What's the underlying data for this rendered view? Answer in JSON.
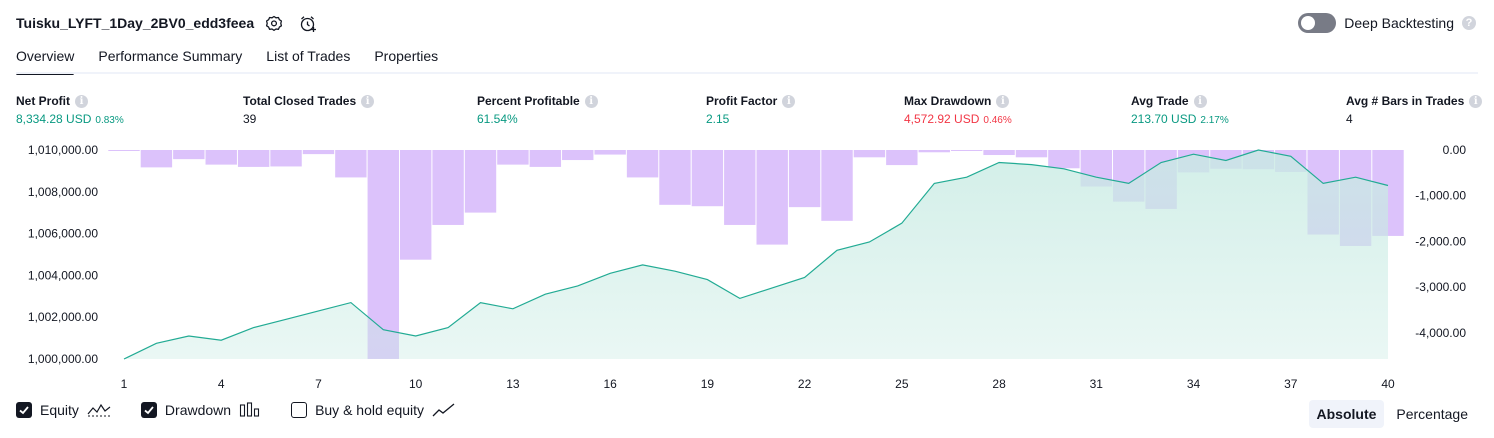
{
  "header": {
    "title": "Tuisku_LYFT_1Day_2BV0_edd3feea"
  },
  "deep_backtesting": {
    "label": "Deep Backtesting",
    "help": "?"
  },
  "tabs": [
    {
      "label": "Overview",
      "active": true
    },
    {
      "label": "Performance Summary"
    },
    {
      "label": "List of Trades"
    },
    {
      "label": "Properties"
    }
  ],
  "metrics": {
    "net_profit": {
      "label": "Net Profit",
      "value": "8,334.28 USD",
      "sub": "0.83%"
    },
    "total_closed_trades": {
      "label": "Total Closed Trades",
      "value": "39"
    },
    "percent_profitable": {
      "label": "Percent Profitable",
      "value": "61.54%"
    },
    "profit_factor": {
      "label": "Profit Factor",
      "value": "2.15"
    },
    "max_drawdown": {
      "label": "Max Drawdown",
      "value": "4,572.92 USD",
      "sub": "0.46%"
    },
    "avg_trade": {
      "label": "Avg Trade",
      "value": "213.70 USD",
      "sub": "2.17%"
    },
    "avg_bars": {
      "label": "Avg # Bars in Trades",
      "value": "4"
    },
    "info_glyph": "i"
  },
  "legend": {
    "equity": {
      "label": "Equity",
      "checked": true
    },
    "drawdown": {
      "label": "Drawdown",
      "checked": true
    },
    "buy_hold": {
      "label": "Buy & hold equity",
      "checked": false
    }
  },
  "mode": {
    "absolute": "Absolute",
    "percentage": "Percentage",
    "selected": "Absolute"
  },
  "colors": {
    "equity_line": "#22ab94",
    "equity_fill": "#c8ebe3",
    "drawdown_bar": "#dcc2fb",
    "positive": "#089981",
    "negative": "#f23645"
  },
  "chart_data": {
    "type": "area",
    "x": [
      1,
      2,
      3,
      4,
      5,
      6,
      7,
      8,
      9,
      10,
      11,
      12,
      13,
      14,
      15,
      16,
      17,
      18,
      19,
      20,
      21,
      22,
      23,
      24,
      25,
      26,
      27,
      28,
      29,
      30,
      31,
      32,
      33,
      34,
      35,
      36,
      37,
      38,
      39,
      40
    ],
    "x_ticks": [
      "1",
      "4",
      "7",
      "10",
      "13",
      "16",
      "19",
      "22",
      "25",
      "28",
      "31",
      "34",
      "37",
      "40"
    ],
    "left_axis": {
      "ticks": [
        "1,010,000.00",
        "1,008,000.00",
        "1,006,000.00",
        "1,004,000.00",
        "1,002,000.00",
        "1,000,000.00"
      ],
      "ylim": [
        1000000,
        1010000
      ]
    },
    "right_axis": {
      "ticks": [
        "0.00",
        "-1,000.00",
        "-2,000.00",
        "-3,000.00",
        "-4,000.00"
      ],
      "ylim": [
        -4572.92,
        0
      ]
    },
    "series": [
      {
        "name": "Equity",
        "axis": "left",
        "values": [
          1000000,
          1000750,
          1001100,
          1000900,
          1001500,
          1001900,
          1002300,
          1002700,
          1001400,
          1001100,
          1001500,
          1002700,
          1002400,
          1003100,
          1003500,
          1004100,
          1004500,
          1004200,
          1003800,
          1002900,
          1003400,
          1003900,
          1005200,
          1005600,
          1006500,
          1008400,
          1008700,
          1009400,
          1009300,
          1009100,
          1008700,
          1008400,
          1009400,
          1009800,
          1009500,
          1010000,
          1009700,
          1008400,
          1008700,
          1008300
        ]
      },
      {
        "name": "Drawdown",
        "axis": "right",
        "values": [
          -20,
          -380,
          -200,
          -320,
          -370,
          -360,
          -90,
          -600,
          -4572,
          -2400,
          -1640,
          -1370,
          -320,
          -370,
          -220,
          -100,
          -600,
          -1200,
          -1230,
          -1640,
          -2070,
          -1250,
          -1550,
          -160,
          -330,
          -50,
          -20,
          -110,
          -160,
          -400,
          -800,
          -1130,
          -1290,
          -490,
          -410,
          -420,
          -480,
          -1850,
          -2100,
          -1880
        ]
      }
    ]
  }
}
